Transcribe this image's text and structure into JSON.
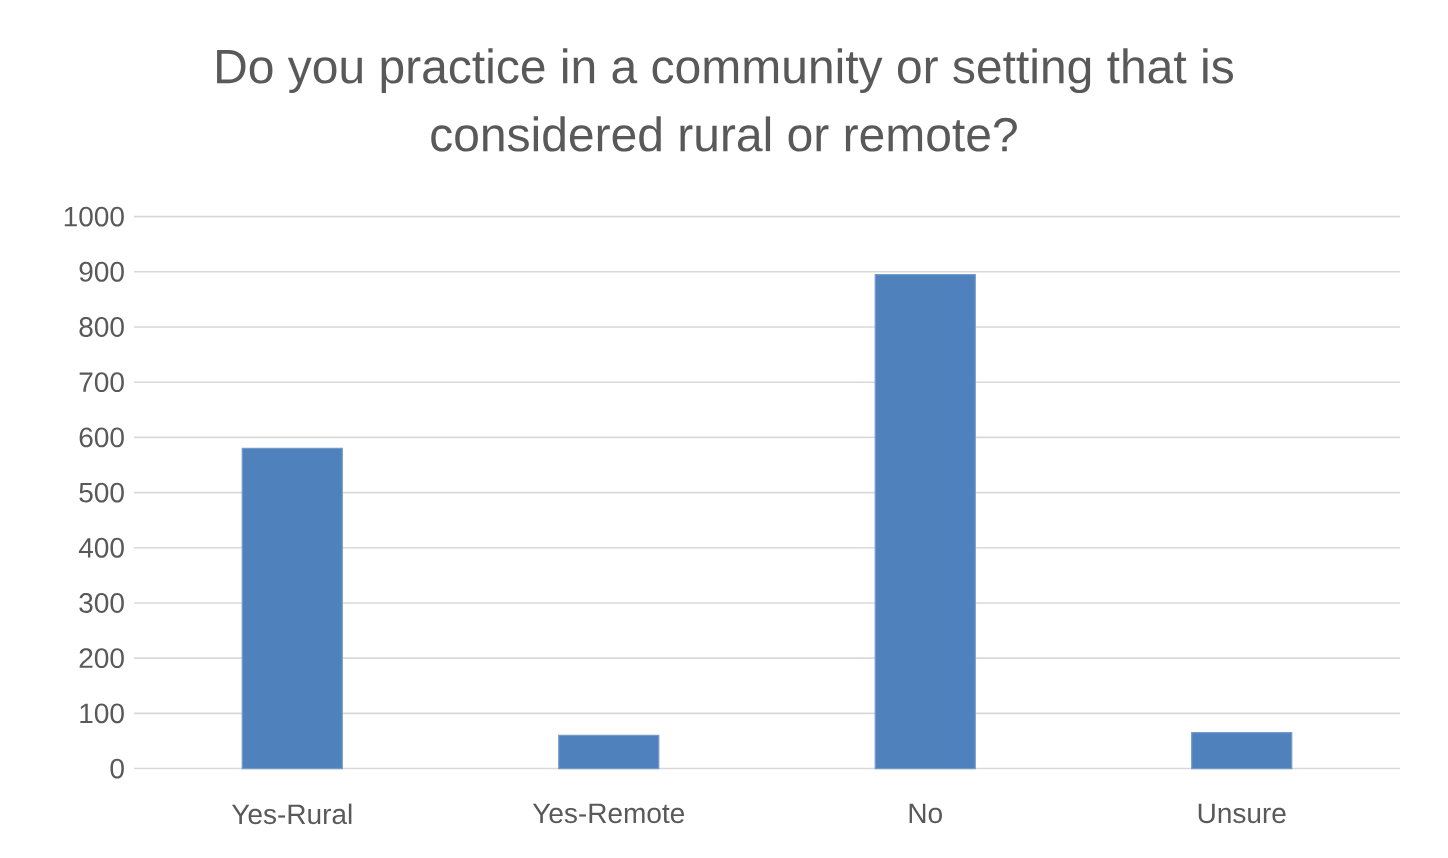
{
  "chart_data": {
    "type": "bar",
    "title": "Do you practice in a community or setting that is considered rural or remote?",
    "categories": [
      "Yes-Rural",
      "Yes-Remote",
      "No",
      "Unsure"
    ],
    "values": [
      580,
      60,
      895,
      65
    ],
    "color": "#4f81bd",
    "ylim": [
      0,
      1000
    ],
    "yticks": [
      0,
      100,
      200,
      300,
      400,
      500,
      600,
      700,
      800,
      900,
      1000
    ],
    "grid": "y"
  }
}
